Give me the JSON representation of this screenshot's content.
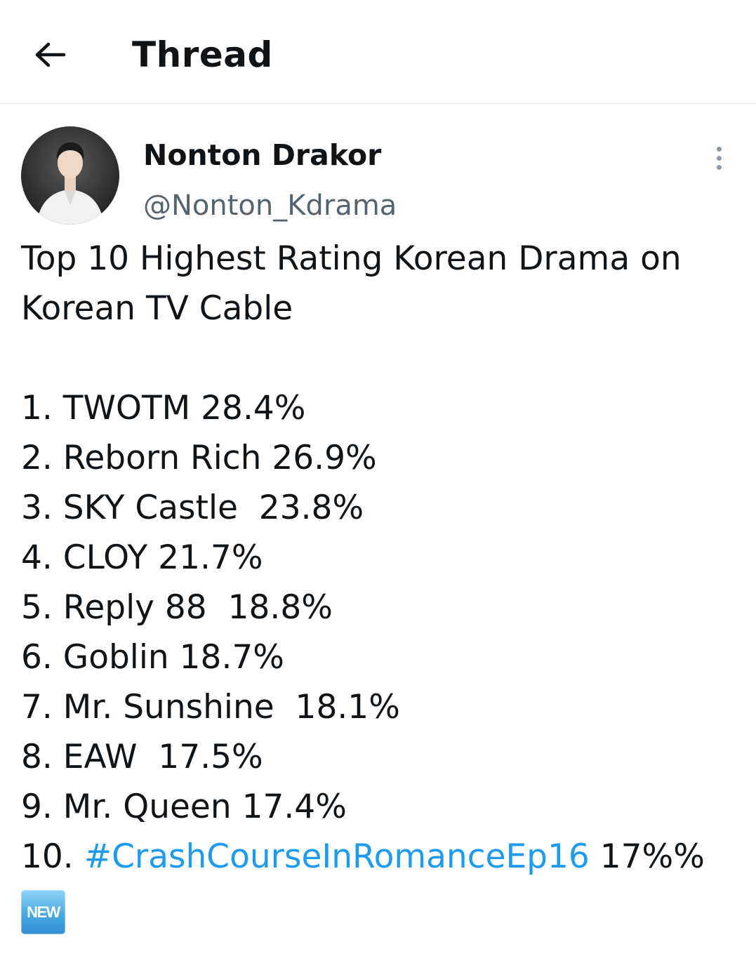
{
  "header": {
    "title": "Thread",
    "back_icon": "arrow-left-icon"
  },
  "tweet": {
    "author": {
      "name": "Nonton Drakor",
      "handle": "@Nonton_Kdrama",
      "avatar_icon": "profile-photo"
    },
    "more_icon": "vertical-dots-icon",
    "intro_lines": [
      "Top 10 Highest Rating Korean Drama on",
      "Korean TV Cable"
    ],
    "list": [
      "1. TWOTM 28.4%",
      "2. Reborn Rich 26.9%",
      "3. SKY Castle  23.8%",
      "4. CLOY 21.7%",
      "5. Reply 88  18.8%",
      "6. Goblin 18.7%",
      "7. Mr. Sunshine  18.1%",
      "8. EAW  17.5%",
      "9. Mr. Queen 17.4%"
    ],
    "last_item": {
      "prefix": "10. ",
      "hashtag": "#CrashCourseInRomanceEp16",
      "suffix": " 17%%"
    },
    "badge": "NEW",
    "colors": {
      "hashtag": "#1d9bf0",
      "secondary_text": "#536471",
      "badge": "#49a9e3"
    }
  }
}
